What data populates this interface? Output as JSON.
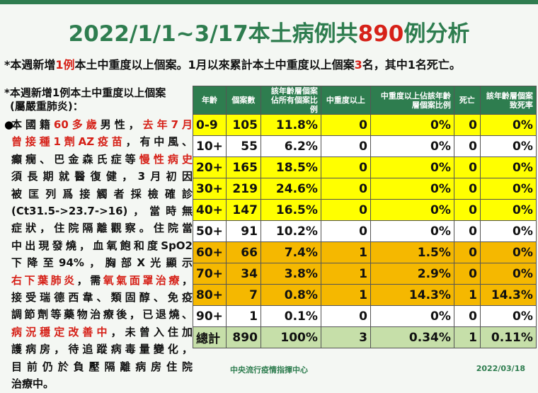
{
  "title": {
    "pre": "2022/1/1~3/17本土病例共",
    "num": "890",
    "post": "例分析"
  },
  "summary": {
    "p1": "*本週新增",
    "h1": "1例",
    "p2": "本土中重度以上個案。1月以來累計本土中重度以上個案",
    "h2": "3",
    "p3": "名，其中1名死亡。"
  },
  "left": {
    "heading1": "*本週新增1例本土中重度以上個案",
    "heading2": "(屬嚴重肺炎)：",
    "bullet": "●",
    "lines": [
      [
        {
          "t": "本國籍",
          "r": false
        },
        {
          "t": "60多歲",
          "r": true
        },
        {
          "t": "男性，",
          "r": false
        },
        {
          "t": "去年7月",
          "r": true
        }
      ],
      [
        {
          "t": "曾接種1劑AZ疫苗",
          "r": true
        },
        {
          "t": "，有中風、",
          "r": false
        }
      ],
      [
        {
          "t": "癲癇、巴金森氏症等",
          "r": false
        },
        {
          "t": "慢性病史",
          "r": true
        }
      ],
      [
        {
          "t": "須長期就醫復健，3月初因",
          "r": false
        }
      ],
      [
        {
          "t": "被匡列爲接觸者採檢確診",
          "r": false
        }
      ],
      [
        {
          "t": "(Ct31.5->23.7->16)，當時無",
          "r": false
        }
      ],
      [
        {
          "t": "症狀，住院隔離觀察。住院當",
          "r": false
        }
      ],
      [
        {
          "t": "中出現發燒，血氧飽和度SpO2",
          "r": false
        }
      ],
      [
        {
          "t": "下降至94%，胸部X光顯示",
          "r": false
        }
      ],
      [
        {
          "t": "右下葉肺炎",
          "r": true
        },
        {
          "t": "，需",
          "r": false
        },
        {
          "t": "氧氣面罩治療",
          "r": true
        },
        {
          "t": "，",
          "r": false
        }
      ],
      [
        {
          "t": "接受瑞德西韋、類固醇、免疫",
          "r": false
        }
      ],
      [
        {
          "t": "調節劑等藥物治療後，已退燒、",
          "r": false
        }
      ],
      [
        {
          "t": "病況穩定改善中",
          "r": true
        },
        {
          "t": "，未曾入住加",
          "r": false
        }
      ],
      [
        {
          "t": "護病房，待追蹤病毒量變化，",
          "r": false
        }
      ],
      [
        {
          "t": "目前仍於負壓隔離病房住院",
          "r": false
        }
      ],
      [
        {
          "t": "治療中。",
          "r": false
        }
      ]
    ]
  },
  "table": {
    "headers": [
      "年齡",
      "個案數",
      "該年齡層個案佔所有個案比例",
      "中重度以上",
      "中重度以上佔該年齡層個案比例",
      "死亡",
      "該年齡層個案致死率"
    ],
    "rows": [
      {
        "age": "0-9",
        "cases": "105",
        "pct": "11.8%",
        "severe": "0",
        "severe_pct": "0%",
        "death": "0",
        "cfr": "0%",
        "color": "yellow"
      },
      {
        "age": "10+",
        "cases": "55",
        "pct": "6.2%",
        "severe": "0",
        "severe_pct": "0%",
        "death": "0",
        "cfr": "0%",
        "color": "white"
      },
      {
        "age": "20+",
        "cases": "165",
        "pct": "18.5%",
        "severe": "0",
        "severe_pct": "0%",
        "death": "0",
        "cfr": "0%",
        "color": "yellow"
      },
      {
        "age": "30+",
        "cases": "219",
        "pct": "24.6%",
        "severe": "0",
        "severe_pct": "0%",
        "death": "0",
        "cfr": "0%",
        "color": "yellow"
      },
      {
        "age": "40+",
        "cases": "147",
        "pct": "16.5%",
        "severe": "0",
        "severe_pct": "0%",
        "death": "0",
        "cfr": "0%",
        "color": "yellow"
      },
      {
        "age": "50+",
        "cases": "91",
        "pct": "10.2%",
        "severe": "0",
        "severe_pct": "0%",
        "death": "0",
        "cfr": "0%",
        "color": "white"
      },
      {
        "age": "60+",
        "cases": "66",
        "pct": "7.4%",
        "severe": "1",
        "severe_pct": "1.5%",
        "death": "0",
        "cfr": "0%",
        "color": "orange"
      },
      {
        "age": "70+",
        "cases": "34",
        "pct": "3.8%",
        "severe": "1",
        "severe_pct": "2.9%",
        "death": "0",
        "cfr": "0%",
        "color": "orange"
      },
      {
        "age": "80+",
        "cases": "7",
        "pct": "0.8%",
        "severe": "1",
        "severe_pct": "14.3%",
        "death": "1",
        "cfr": "14.3%",
        "color": "orange"
      },
      {
        "age": "90+",
        "cases": "1",
        "pct": "0.1%",
        "severe": "0",
        "severe_pct": "0%",
        "death": "0",
        "cfr": "0%",
        "color": "white"
      },
      {
        "age": "總計",
        "cases": "890",
        "pct": "100%",
        "severe": "3",
        "severe_pct": "0.34%",
        "death": "1",
        "cfr": "0.11%",
        "color": "green"
      }
    ]
  },
  "footer": {
    "org": "中央流行疫情指揮中心",
    "date": "2022/03/18"
  },
  "colors": {
    "green": "#2e7d4f",
    "red": "#d62118",
    "yellow": "#ffff00",
    "orange": "#f5b800",
    "total": "#c6dfa9"
  }
}
